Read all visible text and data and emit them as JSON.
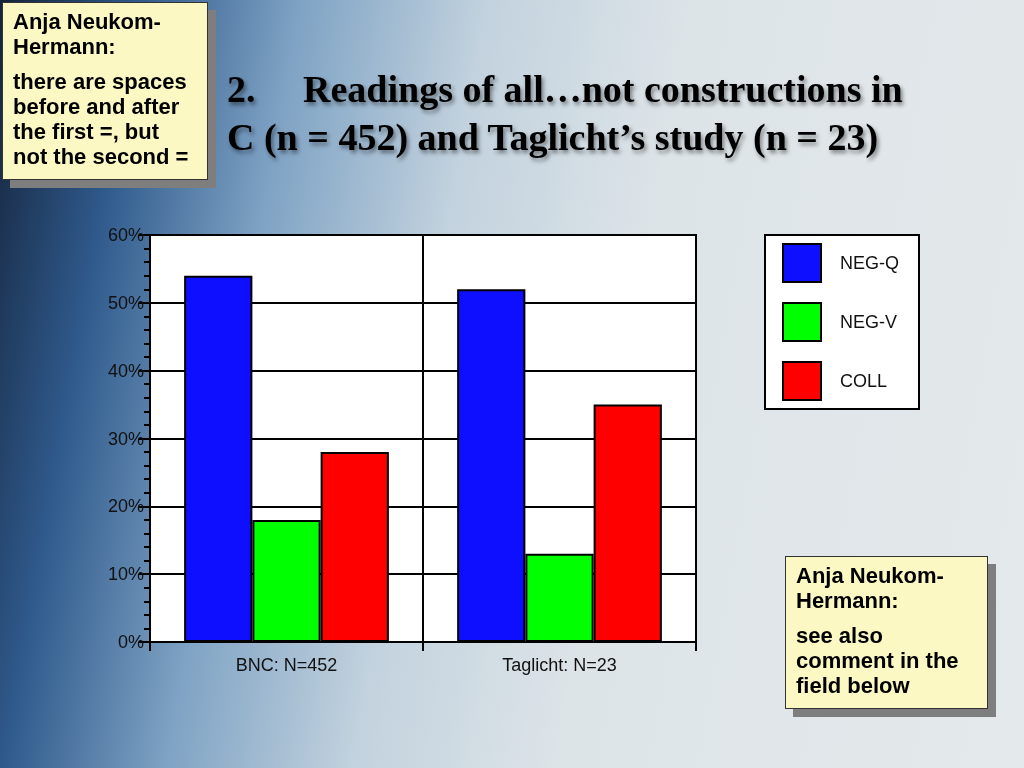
{
  "chart_data": {
    "type": "bar",
    "title": "2.     Readings of all…not constructions in\nC (n = 452) and Taglicht’s study (n = 23)",
    "categories": [
      "BNC: N=452",
      "Taglicht: N=23"
    ],
    "series": [
      {
        "name": "NEG-Q",
        "color": "#0f0fff",
        "values": [
          54,
          52
        ]
      },
      {
        "name": "NEG-V",
        "color": "#00ff00",
        "values": [
          18,
          13
        ]
      },
      {
        "name": "COLL",
        "color": "#ff0000",
        "values": [
          28,
          35
        ]
      }
    ],
    "ylim": [
      0,
      60
    ],
    "yticks": [
      {
        "value": 0,
        "label": "0%"
      },
      {
        "value": 2,
        "label": null
      },
      {
        "value": 4,
        "label": null
      },
      {
        "value": 6,
        "label": null
      },
      {
        "value": 8,
        "label": null
      },
      {
        "value": 10,
        "label": "10%"
      },
      {
        "value": 12,
        "label": null
      },
      {
        "value": 14,
        "label": null
      },
      {
        "value": 16,
        "label": null
      },
      {
        "value": 18,
        "label": null
      },
      {
        "value": 20,
        "label": "20%"
      },
      {
        "value": 22,
        "label": null
      },
      {
        "value": 24,
        "label": null
      },
      {
        "value": 26,
        "label": null
      },
      {
        "value": 28,
        "label": null
      },
      {
        "value": 30,
        "label": "30%"
      },
      {
        "value": 32,
        "label": null
      },
      {
        "value": 34,
        "label": null
      },
      {
        "value": 36,
        "label": null
      },
      {
        "value": 38,
        "label": null
      },
      {
        "value": 40,
        "label": "40%"
      },
      {
        "value": 42,
        "label": null
      },
      {
        "value": 44,
        "label": null
      },
      {
        "value": 46,
        "label": null
      },
      {
        "value": 48,
        "label": null
      },
      {
        "value": 50,
        "label": "50%"
      },
      {
        "value": 52,
        "label": null
      },
      {
        "value": 54,
        "label": null
      },
      {
        "value": 56,
        "label": null
      },
      {
        "value": 58,
        "label": null
      },
      {
        "value": 60,
        "label": "60%"
      }
    ],
    "grid": true,
    "legend": "top right",
    "annotations": [
      "Anja Neukom-Hermann:\nthere are spaces before and after the first =, but not the second =",
      "Anja Neukom-Hermann:\nsee also comment in the field below"
    ]
  }
}
